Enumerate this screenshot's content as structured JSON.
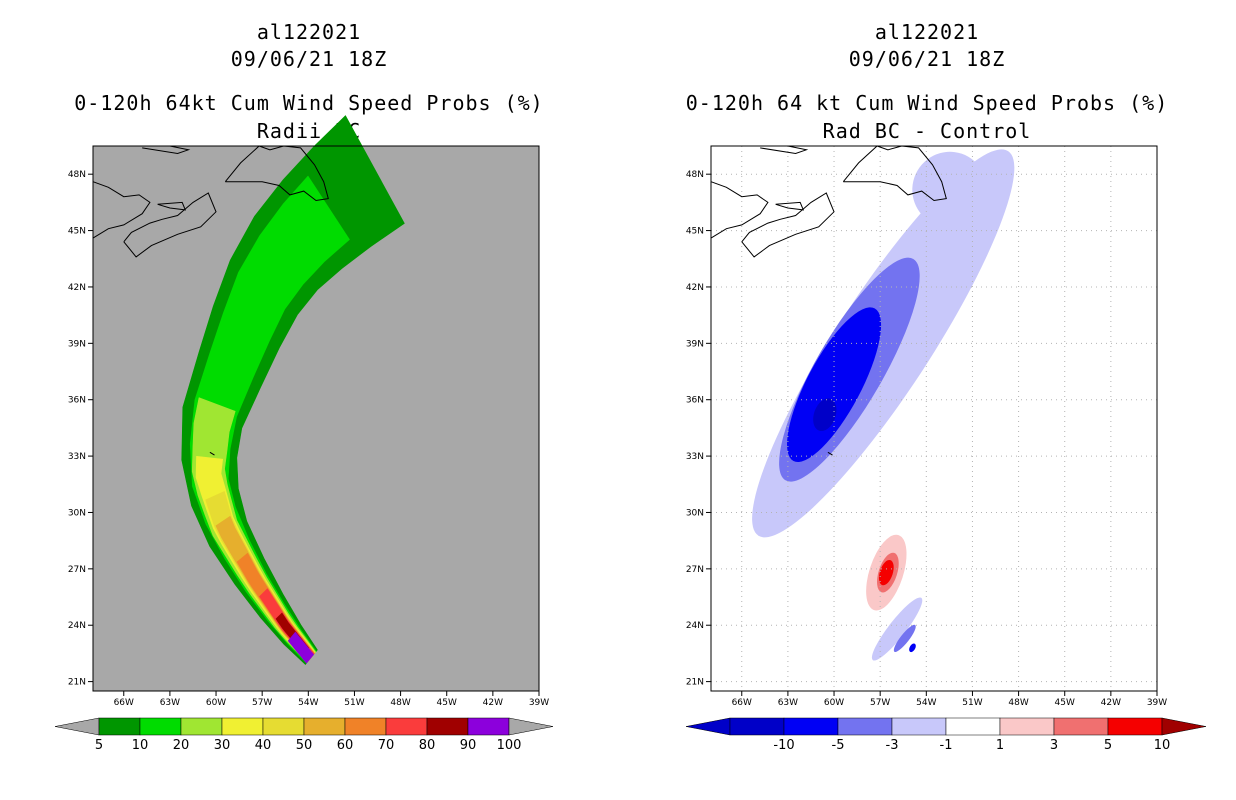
{
  "colors": {
    "land_gray": "#a8a8a8",
    "coast": "#000000",
    "seq": [
      "#009600",
      "#00dc00",
      "#a0e632",
      "#f0f032",
      "#e6dc32",
      "#e6af2d",
      "#f08228",
      "#fa3c3c",
      "#a00000",
      "#8c00dc"
    ],
    "div": [
      "#0000c8",
      "#0000f5",
      "#7373f0",
      "#c8c8fa",
      "#ffffff",
      "#fac8c8",
      "#f07070",
      "#f50000",
      "#a00000"
    ]
  },
  "left_panel": {
    "title_line1": "al122021",
    "title_line2": "09/06/21 18Z",
    "title_line3": "0-120h 64kt Cum Wind Speed Probs (%)",
    "title_line4": "Radii BC"
  },
  "right_panel": {
    "title_line1": "al122021",
    "title_line2": "09/06/21 18Z",
    "title_line3": "0-120h 64 kt Cum Wind Speed Probs (%)",
    "title_line4": "Rad BC - Control"
  },
  "chart_data": [
    {
      "type": "heatmap",
      "title": "0-120h 64kt Cum Wind Speed Probs (%)",
      "subtitle": "Radii BC",
      "storm_id": "al122021",
      "init_time": "09/06/21 18Z",
      "x_ticks": [
        "66W",
        "63W",
        "60W",
        "57W",
        "54W",
        "51W",
        "48W",
        "45W",
        "42W",
        "39W"
      ],
      "y_ticks": [
        "21N",
        "24N",
        "27N",
        "30N",
        "33N",
        "36N",
        "39N",
        "42N",
        "45N",
        "48N"
      ],
      "xlim": [
        -68,
        -39
      ],
      "ylim": [
        20.5,
        49.5
      ],
      "grid": false,
      "colorbar_levels": [
        "5",
        "10",
        "20",
        "30",
        "40",
        "50",
        "60",
        "70",
        "80",
        "90",
        "100"
      ],
      "track_centerline": [
        [
          -53.8,
          22.3
        ],
        [
          -55.5,
          24
        ],
        [
          -57.5,
          26.5
        ],
        [
          -59.4,
          29.3
        ],
        [
          -60.4,
          32
        ],
        [
          -60.1,
          35
        ],
        [
          -58.5,
          38.5
        ],
        [
          -57,
          41.5
        ],
        [
          -55,
          44
        ],
        [
          -52.5,
          46
        ],
        [
          -49.5,
          48
        ]
      ]
    },
    {
      "type": "heatmap",
      "title": "0-120h 64 kt Cum Wind Speed Probs (%)",
      "subtitle": "Rad BC - Control",
      "storm_id": "al122021",
      "init_time": "09/06/21 18Z",
      "x_ticks": [
        "66W",
        "63W",
        "60W",
        "57W",
        "54W",
        "51W",
        "48W",
        "45W",
        "42W",
        "39W"
      ],
      "y_ticks": [
        "21N",
        "24N",
        "27N",
        "30N",
        "33N",
        "36N",
        "39N",
        "42N",
        "45N",
        "48N"
      ],
      "xlim": [
        -68,
        -39
      ],
      "ylim": [
        20.5,
        49.5
      ],
      "grid": true,
      "colorbar_levels": [
        "-10",
        "-5",
        "-3",
        "-1",
        "1",
        "3",
        "5",
        "10"
      ],
      "features": [
        {
          "name": "negative difference maximum",
          "lon": -60.8,
          "lat": 35.2,
          "value": "< -10"
        },
        {
          "name": "positive difference maximum",
          "lon": -56.5,
          "lat": 26.7,
          "value": "5 to 10"
        },
        {
          "name": "negative difference near genesis",
          "lon": -55,
          "lat": 22.8,
          "value": "-5 to -10"
        }
      ]
    }
  ]
}
